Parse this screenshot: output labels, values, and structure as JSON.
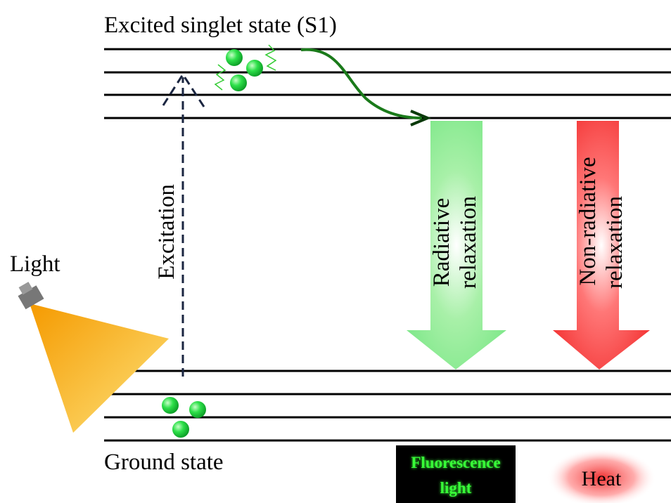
{
  "title": "Excited singlet state (S1)",
  "light_label": "Light",
  "excitation_label": "Excitation",
  "radiative_label": [
    "Radiative",
    "relaxation"
  ],
  "non_radiative_label": [
    "Non-radiative",
    "relaxation"
  ],
  "ground_label": "Ground state",
  "fluorescence_label": [
    "Fluorescence",
    "light"
  ],
  "heat_label": "Heat"
}
